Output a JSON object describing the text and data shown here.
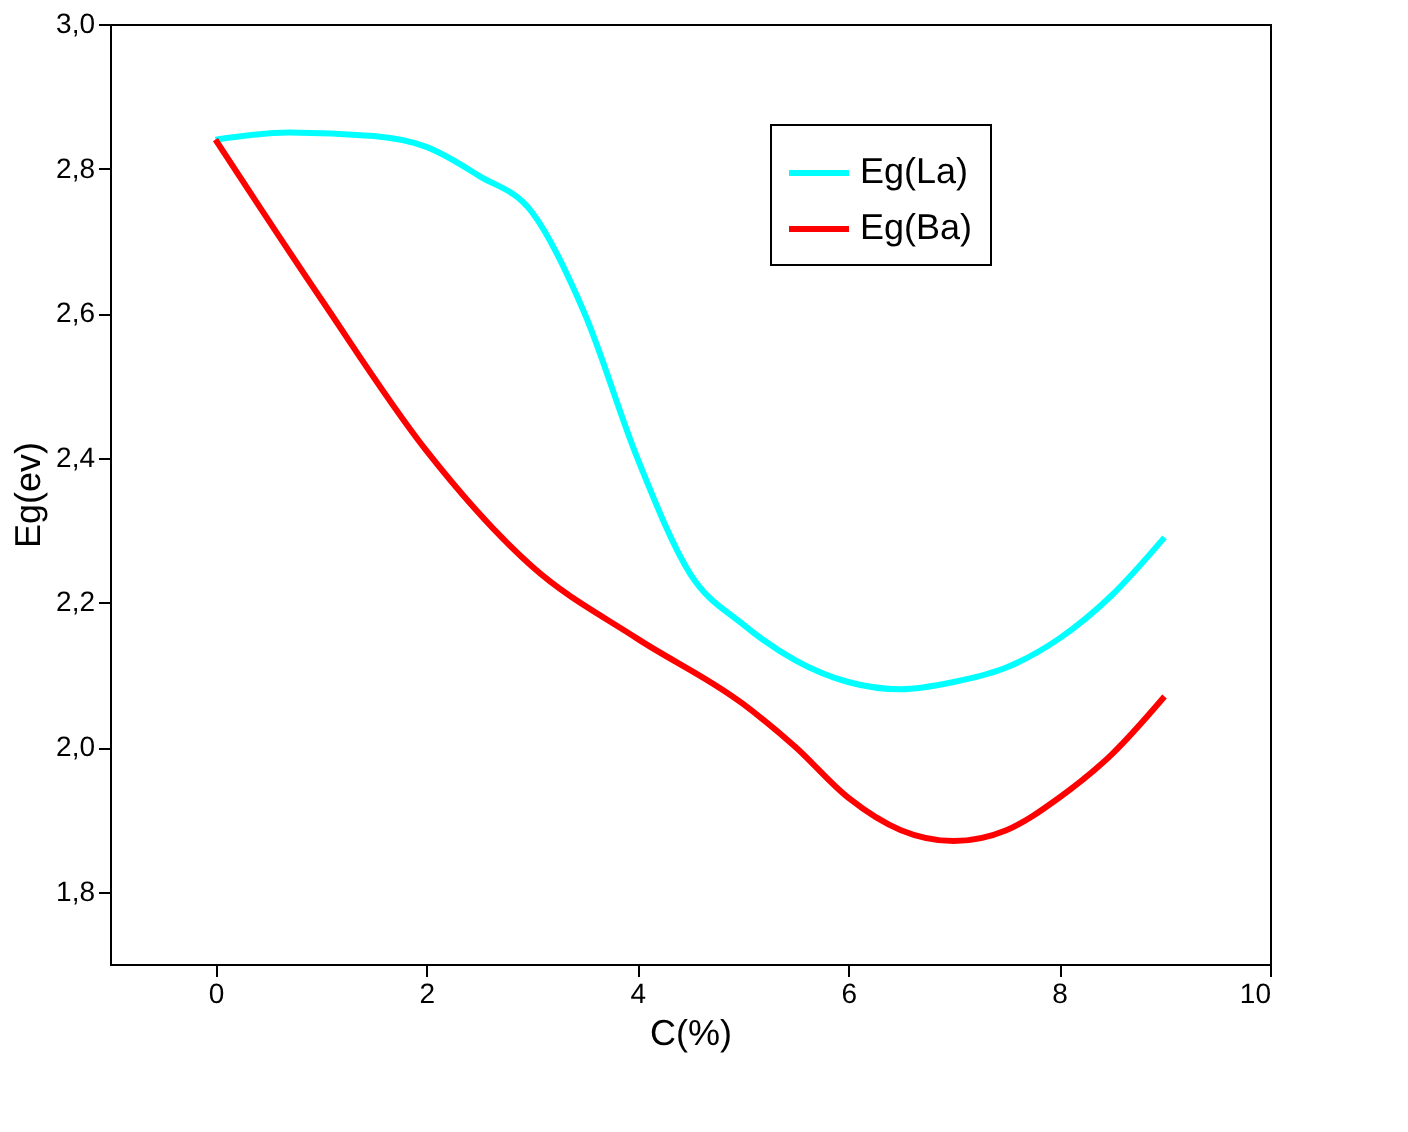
{
  "chart_data": {
    "type": "line",
    "xlabel": "C(%)",
    "ylabel": "Eg(ev)",
    "xlim": [
      -1,
      10
    ],
    "xticks": [
      0,
      2,
      4,
      6,
      8,
      10
    ],
    "ylim": [
      1.7,
      3.0
    ],
    "yticks": [
      {
        "value": 1.8,
        "label": "1,8"
      },
      {
        "value": 2.0,
        "label": "2,0"
      },
      {
        "value": 2.2,
        "label": "2,2"
      },
      {
        "value": 2.4,
        "label": "2,4"
      },
      {
        "value": 2.6,
        "label": "2,6"
      },
      {
        "value": 2.8,
        "label": "2,8"
      },
      {
        "value": 3.0,
        "label": "3,0"
      }
    ],
    "grid": false,
    "legend": "top right",
    "marker": "none",
    "line_style": "solid",
    "series": [
      {
        "name": "Eg(La)",
        "color": "#00ffff",
        "x": [
          0,
          0.7,
          1.5,
          2,
          2.5,
          3,
          3.5,
          4,
          4.5,
          5,
          5.5,
          6,
          6.5,
          7,
          7.5,
          8,
          8.5,
          9
        ],
        "values": [
          2.84,
          2.85,
          2.845,
          2.83,
          2.79,
          2.74,
          2.6,
          2.4,
          2.24,
          2.17,
          2.12,
          2.09,
          2.08,
          2.09,
          2.11,
          2.15,
          2.21,
          2.29
        ]
      },
      {
        "name": "Eg(Ba)",
        "color": "#ff0000",
        "x": [
          0,
          1,
          2,
          3,
          4,
          5,
          5.5,
          6,
          6.5,
          7,
          7.5,
          8,
          8.5,
          9
        ],
        "values": [
          2.84,
          2.62,
          2.41,
          2.25,
          2.15,
          2.06,
          2.0,
          1.93,
          1.885,
          1.87,
          1.885,
          1.93,
          1.99,
          2.07
        ]
      }
    ]
  }
}
